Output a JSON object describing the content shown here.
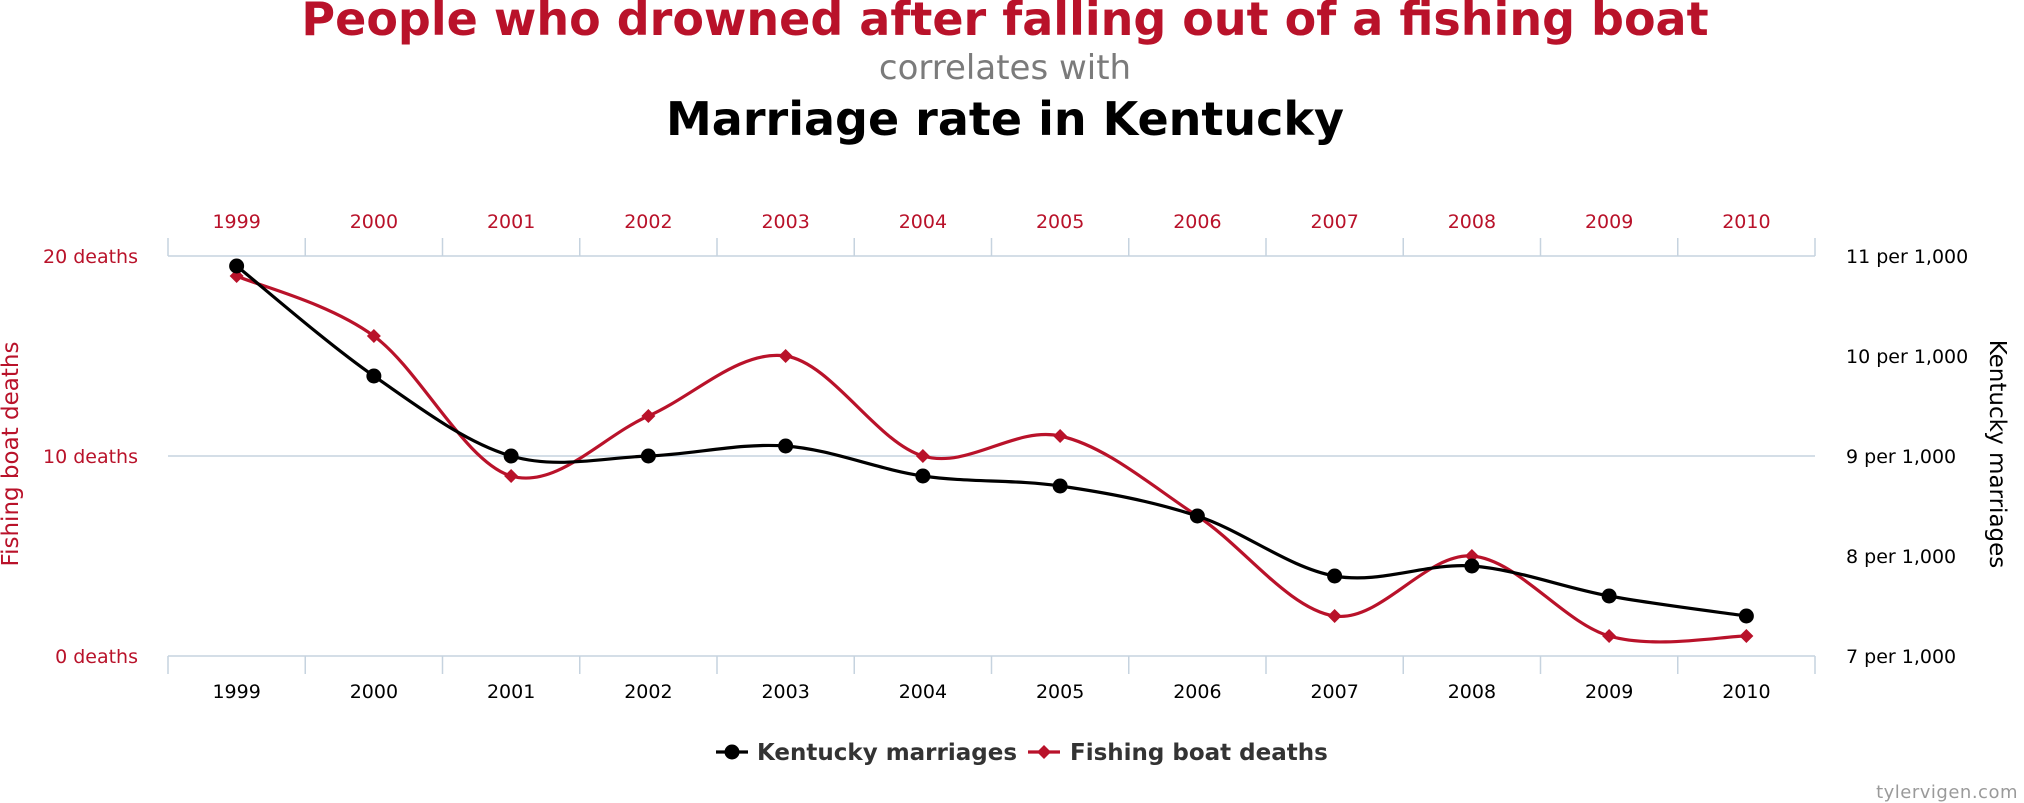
{
  "header": {
    "title": "People who drowned after falling out of a fishing boat",
    "subtitle": "correlates with",
    "title2": "Marriage rate in Kentucky"
  },
  "watermark": "tylervigen.com",
  "chart_data": {
    "type": "line",
    "x": [
      "1999",
      "2000",
      "2001",
      "2002",
      "2003",
      "2004",
      "2005",
      "2006",
      "2007",
      "2008",
      "2009",
      "2010"
    ],
    "series": [
      {
        "name": "Kentucky marriages",
        "axis": "right",
        "color": "#000000",
        "marker": "circle",
        "values": [
          10.9,
          9.8,
          9.0,
          9.0,
          9.1,
          8.8,
          8.7,
          8.4,
          7.8,
          7.9,
          7.6,
          7.4
        ]
      },
      {
        "name": "Fishing boat deaths",
        "axis": "left",
        "color": "#b9122a",
        "marker": "diamond",
        "values": [
          19,
          16,
          9,
          12,
          15,
          10,
          11,
          7,
          2,
          5,
          1,
          1
        ]
      }
    ],
    "left_axis": {
      "label": "Fishing boat deaths",
      "ticks": [
        {
          "value": 20,
          "label": "20 deaths"
        },
        {
          "value": 10,
          "label": "10 deaths"
        },
        {
          "value": 0,
          "label": "0 deaths"
        }
      ],
      "ylim": [
        0,
        20
      ]
    },
    "right_axis": {
      "label": "Kentucky marriages",
      "ticks": [
        {
          "value": 11,
          "label": "11 per 1,000"
        },
        {
          "value": 10,
          "label": "10 per 1,000"
        },
        {
          "value": 9,
          "label": "9 per 1,000"
        },
        {
          "value": 8,
          "label": "8 per 1,000"
        },
        {
          "value": 7,
          "label": "7 per 1,000"
        }
      ],
      "ylim": [
        7,
        11
      ]
    },
    "grid": true,
    "legend_position": "bottom-center",
    "colors": {
      "accent": "#b9122a",
      "axis_line": "#c6d3df",
      "text_dark": "#333333"
    }
  }
}
